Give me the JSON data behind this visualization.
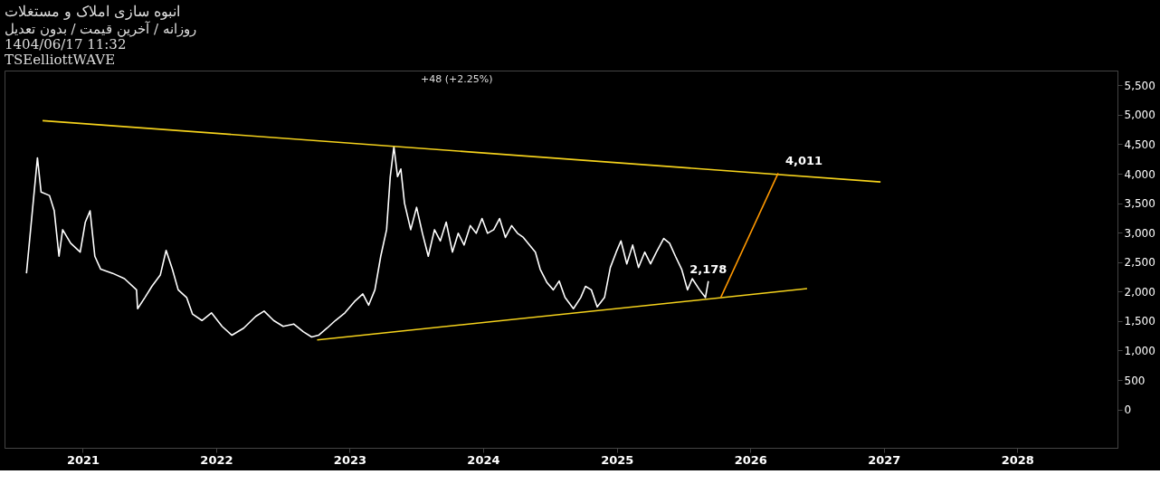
{
  "chart_data": {
    "type": "line",
    "title": "انبوه سازی املاک و مستغلات",
    "subtitle": "روزانه / آخرین قیمت / بدون تعدیل",
    "annotations": [
      "+48 (+2.25%)",
      "1404/06/17 11:32",
      "TSEelliottWAVE",
      {
        "text": "4,011",
        "x": "2026-03-18",
        "y": 4011
      },
      {
        "text": "2,178",
        "x": "2025-09-08",
        "y": 2178
      }
    ],
    "series": [
      {
        "color": "#ffffff",
        "x": [
          "2020-07-31",
          "2020-08-30",
          "2020-09-09",
          "2020-10-02",
          "2020-10-15",
          "2020-10-28",
          "2020-11-07",
          "2020-11-29",
          "2020-12-25",
          "2021-01-08",
          "2021-01-21",
          "2021-02-03",
          "2021-02-19",
          "2021-03-24",
          "2021-04-25",
          "2021-05-28",
          "2021-05-31",
          "2021-06-20",
          "2021-07-09",
          "2021-08-01",
          "2021-08-17",
          "2021-09-03",
          "2021-09-19",
          "2021-10-12",
          "2021-10-28",
          "2021-11-23",
          "2021-12-19",
          "2022-01-17",
          "2022-02-13",
          "2022-03-17",
          "2022-04-19",
          "2022-05-12",
          "2022-06-07",
          "2022-07-03",
          "2022-08-01",
          "2022-08-27",
          "2022-09-19",
          "2022-10-08",
          "2022-10-31",
          "2022-11-23",
          "2022-12-19",
          "2023-01-14",
          "2023-02-06",
          "2023-02-22",
          "2023-03-11",
          "2023-03-27",
          "2023-04-12",
          "2023-04-22",
          "2023-05-02",
          "2023-05-12",
          "2023-05-21",
          "2023-05-31",
          "2023-06-17",
          "2023-07-03",
          "2023-07-19",
          "2023-08-04",
          "2023-08-21",
          "2023-09-06",
          "2023-09-22",
          "2023-10-09",
          "2023-10-25",
          "2023-11-10",
          "2023-11-27",
          "2023-12-13",
          "2023-12-29",
          "2024-01-13",
          "2024-01-30",
          "2024-02-15",
          "2024-03-02",
          "2024-03-19",
          "2024-04-04",
          "2024-04-20",
          "2024-05-23",
          "2024-06-05",
          "2024-06-24",
          "2024-07-11",
          "2024-07-27",
          "2024-08-12",
          "2024-09-04",
          "2024-09-24",
          "2024-10-07",
          "2024-10-23",
          "2024-11-08",
          "2024-11-28",
          "2024-12-14",
          "2024-12-30",
          "2025-01-12",
          "2025-01-28",
          "2025-02-13",
          "2025-03-01",
          "2025-03-18",
          "2025-04-03",
          "2025-04-19",
          "2025-05-09",
          "2025-05-25",
          "2025-06-10",
          "2025-06-27",
          "2025-07-13",
          "2025-07-26",
          "2025-08-15",
          "2025-08-31",
          "2025-09-08"
        ],
        "values": [
          2310,
          4270,
          3690,
          3630,
          3370,
          2600,
          3050,
          2820,
          2670,
          3180,
          3370,
          2600,
          2380,
          2310,
          2220,
          2030,
          1710,
          1900,
          2090,
          2280,
          2700,
          2380,
          2030,
          1900,
          1620,
          1510,
          1640,
          1410,
          1260,
          1380,
          1580,
          1670,
          1510,
          1410,
          1450,
          1320,
          1230,
          1260,
          1380,
          1510,
          1640,
          1830,
          1960,
          1770,
          2030,
          2600,
          3050,
          3950,
          4460,
          3950,
          4080,
          3500,
          3050,
          3430,
          2990,
          2600,
          3050,
          2860,
          3180,
          2670,
          2990,
          2790,
          3120,
          2990,
          3240,
          2990,
          3050,
          3240,
          2920,
          3120,
          2990,
          2920,
          2670,
          2380,
          2150,
          2030,
          2180,
          1900,
          1710,
          1900,
          2090,
          2030,
          1740,
          1900,
          2410,
          2670,
          2860,
          2470,
          2790,
          2410,
          2670,
          2470,
          2670,
          2900,
          2820,
          2600,
          2380,
          2030,
          2220,
          2030,
          1900,
          2178
        ]
      },
      {
        "color": "#f5d21c",
        "x": [
          "2020-09-13",
          "2026-12-23"
        ],
        "values": [
          4900,
          3860
        ]
      },
      {
        "color": "#f5d21c",
        "x": [
          "2022-10-04",
          "2026-06-05"
        ],
        "values": [
          1180,
          2050
        ]
      },
      {
        "color": "#ff9800",
        "x": [
          "2025-10-12",
          "2026-03-18"
        ],
        "values": [
          1900,
          4011
        ]
      }
    ],
    "xlim": [
      "2020-06-01",
      "2028-10-01"
    ],
    "xticks": [
      "2021",
      "2022",
      "2023",
      "2024",
      "2025",
      "2026",
      "2027",
      "2028"
    ],
    "ylim": [
      -650,
      5750
    ],
    "yticks": [
      0,
      500,
      {
        "value": 1000,
        "label": "1,000"
      },
      {
        "value": 1500,
        "label": "1,500"
      },
      {
        "value": 2000,
        "label": "2,000"
      },
      {
        "value": 2500,
        "label": "2,500"
      },
      {
        "value": 3000,
        "label": "3,000"
      },
      {
        "value": 3500,
        "label": "3,500"
      },
      {
        "value": 4000,
        "label": "4,000"
      },
      {
        "value": 4500,
        "label": "4,500"
      },
      {
        "value": 5000,
        "label": "5,000"
      },
      {
        "value": 5500,
        "label": "5,500"
      }
    ],
    "grid": false
  }
}
